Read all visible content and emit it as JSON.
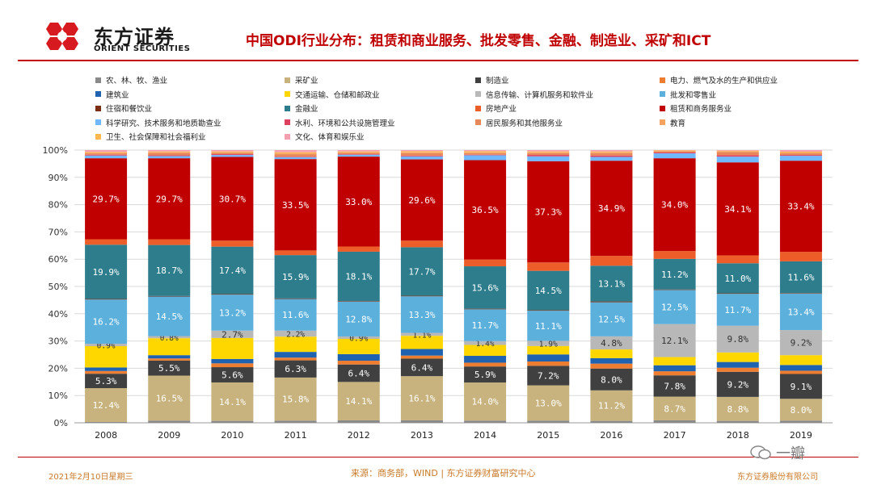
{
  "header": {
    "brand_cn": "东方证券",
    "brand_en": "ORIENT SECURITIES",
    "title": "中国ODI行业分布：租赁和商业服务、批发零售、金融、制造业、采矿和ICT"
  },
  "footer": {
    "date": "2021年2月10日星期三",
    "source": "来源：商务部，WIND | 东方证券财富研究中心",
    "company": "东方证券股份有限公司",
    "watermark": "一瓣"
  },
  "colors": {
    "agri": "#8a8a8a",
    "mining": "#c8b37e",
    "manufacturing": "#404040",
    "utilities": "#ed7d31",
    "construction": "#1f62b0",
    "transport": "#ffd700",
    "ict": "#b8b8b8",
    "wholesale": "#5bb0dc",
    "hotel": "#7b2d12",
    "finance": "#2e7d8c",
    "realestate": "#ec5d29",
    "leasing": "#c00000",
    "research": "#70b8ff",
    "water": "#e04060",
    "residents": "#e8875a",
    "education": "#f4a460",
    "health": "#ffb84d",
    "culture": "#f4a0b0"
  },
  "chart_data": {
    "type": "bar",
    "stacked": true,
    "categories": [
      "2008",
      "2009",
      "2010",
      "2011",
      "2012",
      "2013",
      "2014",
      "2015",
      "2016",
      "2017",
      "2018",
      "2019"
    ],
    "ylim": [
      0,
      100
    ],
    "yticks": [
      "0%",
      "10%",
      "20%",
      "30%",
      "40%",
      "50%",
      "60%",
      "70%",
      "80%",
      "90%",
      "100%"
    ],
    "legend_position": "top",
    "series": [
      {
        "name": "农、林、牧、渔业",
        "color_key": "agri",
        "values": [
          0.3,
          0.8,
          0.7,
          0.8,
          0.9,
          0.9,
          0.8,
          0.8,
          0.7,
          0.9,
          0.7,
          0.8
        ]
      },
      {
        "name": "采矿业",
        "color_key": "mining",
        "values": [
          12.4,
          16.5,
          14.1,
          15.8,
          14.1,
          16.1,
          14.0,
          13.0,
          11.2,
          8.7,
          8.8,
          8.0
        ]
      },
      {
        "name": "制造业",
        "color_key": "manufacturing",
        "values": [
          5.3,
          5.5,
          5.6,
          6.3,
          6.4,
          6.4,
          5.9,
          7.2,
          8.0,
          7.8,
          9.2,
          9.1
        ]
      },
      {
        "name": "电力、燃气及水的生产和供应业",
        "color_key": "utilities",
        "values": [
          1.0,
          0.8,
          1.4,
          1.0,
          1.4,
          1.1,
          1.4,
          1.6,
          1.8,
          1.5,
          1.5,
          1.2
        ]
      },
      {
        "name": "建筑业",
        "color_key": "construction",
        "values": [
          1.3,
          1.2,
          1.6,
          2.1,
          2.4,
          2.4,
          2.5,
          2.6,
          2.0,
          2.2,
          2.1,
          2.1
        ]
      },
      {
        "name": "交通运输、仓储和邮政业",
        "color_key": "transport",
        "values": [
          7.8,
          6.2,
          7.7,
          5.6,
          5.6,
          4.8,
          4.0,
          3.1,
          3.2,
          3.0,
          3.5,
          3.6
        ]
      },
      {
        "name": "信息传输、计算机服务和软件业",
        "color_key": "ict",
        "values": [
          0.9,
          0.8,
          2.7,
          2.2,
          0.9,
          1.1,
          1.4,
          1.9,
          4.8,
          12.1,
          9.8,
          9.2
        ]
      },
      {
        "name": "批发和零售业",
        "color_key": "wholesale",
        "values": [
          16.2,
          14.5,
          13.2,
          11.6,
          12.8,
          13.3,
          11.7,
          11.1,
          12.5,
          12.5,
          11.7,
          13.4
        ]
      },
      {
        "name": "住宿和餐饮业",
        "color_key": "hotel",
        "values": [
          0.2,
          0.2,
          0.2,
          0.2,
          0.2,
          0.2,
          0.2,
          0.2,
          0.3,
          0.2,
          0.2,
          0.2
        ]
      },
      {
        "name": "金融业",
        "color_key": "finance",
        "values": [
          19.9,
          18.7,
          17.4,
          15.9,
          18.1,
          17.7,
          15.6,
          14.5,
          13.1,
          11.2,
          11.0,
          11.6
        ]
      },
      {
        "name": "房地产业",
        "color_key": "realestate",
        "values": [
          2.0,
          2.1,
          2.2,
          1.7,
          1.9,
          2.4,
          2.5,
          3.1,
          3.6,
          2.9,
          2.9,
          3.5
        ]
      },
      {
        "name": "租赁和商务服务业",
        "color_key": "leasing",
        "values": [
          29.7,
          29.7,
          30.7,
          33.5,
          33.0,
          29.6,
          36.5,
          37.3,
          34.9,
          34.0,
          34.1,
          33.4
        ]
      },
      {
        "name": "科学研究、技术服务和地质勘查业",
        "color_key": "research",
        "values": [
          1.0,
          0.8,
          0.7,
          0.7,
          0.7,
          1.1,
          1.8,
          1.8,
          1.4,
          1.8,
          2.1,
          1.8
        ]
      },
      {
        "name": "水利、环境和公共设施管理业",
        "color_key": "water",
        "values": [
          0.3,
          0.3,
          0.3,
          0.2,
          0.2,
          0.3,
          0.2,
          0.5,
          0.5,
          0.3,
          0.5,
          0.3
        ]
      },
      {
        "name": "居民服务和其他服务业",
        "color_key": "residents",
        "values": [
          0.5,
          0.9,
          0.5,
          0.9,
          0.5,
          0.9,
          0.6,
          0.7,
          0.9,
          0.4,
          1.2,
          0.6
        ]
      },
      {
        "name": "教育",
        "color_key": "education",
        "values": [
          0.2,
          0.2,
          0.2,
          0.3,
          0.2,
          0.3,
          0.3,
          0.3,
          0.3,
          0.2,
          0.3,
          0.3
        ]
      },
      {
        "name": "卫生、社会保障和社会福利业",
        "color_key": "health",
        "values": [
          0.3,
          0.3,
          0.3,
          0.4,
          0.3,
          0.4,
          0.4,
          0.3,
          0.3,
          0.2,
          0.2,
          0.3
        ]
      },
      {
        "name": "文化、体育和娱乐业",
        "color_key": "culture",
        "values": [
          0.7,
          0.5,
          0.5,
          0.8,
          0.5,
          0.4,
          0.4,
          0.5,
          0.5,
          0.1,
          0.2,
          0.6
        ]
      }
    ],
    "data_labels": [
      {
        "series": "采矿业",
        "labels": [
          "12.4%",
          "16.5%",
          "14.1%",
          "15.8%",
          "14.1%",
          "16.1%",
          "14.0%",
          "13.0%",
          "11.2%",
          "8.7%",
          "8.8%",
          "8.0%"
        ]
      },
      {
        "series": "制造业",
        "labels": [
          "5.3%",
          "5.5%",
          "5.6%",
          "6.3%",
          "6.4%",
          "6.4%",
          "5.9%",
          "7.2%",
          "8.0%",
          "7.8%",
          "9.2%",
          "9.1%"
        ]
      },
      {
        "series": "信息传输、计算机服务和软件业",
        "labels": [
          "0.9%",
          "0.8%",
          "2.7%",
          "2.2%",
          "0.9%",
          "1.1%",
          "1.4%",
          "1.9%",
          "4.8%",
          "12.1%",
          "9.8%",
          "9.2%"
        ]
      },
      {
        "series": "批发和零售业",
        "labels": [
          "16.2%",
          "14.5%",
          "13.2%",
          "11.6%",
          "12.8%",
          "13.3%",
          "11.7%",
          "11.1%",
          "12.5%",
          "12.5%",
          "11.7%",
          "13.4%"
        ]
      },
      {
        "series": "金融业",
        "labels": [
          "19.9%",
          "18.7%",
          "17.4%",
          "15.9%",
          "18.1%",
          "17.7%",
          "15.6%",
          "14.5%",
          "13.1%",
          "11.2%",
          "11.0%",
          "11.6%"
        ]
      },
      {
        "series": "租赁和商务服务业",
        "labels": [
          "29.7%",
          "29.7%",
          "30.7%",
          "33.5%",
          "33.0%",
          "29.6%",
          "36.5%",
          "37.3%",
          "34.9%",
          "34.0%",
          "34.1%",
          "33.4%"
        ]
      }
    ]
  }
}
